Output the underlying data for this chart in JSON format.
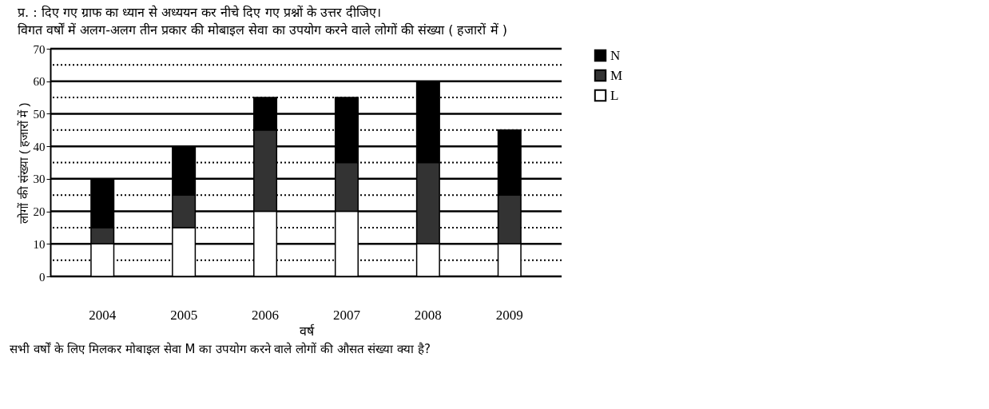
{
  "chart_data": {
    "type": "bar",
    "stacked": true,
    "title": "प्र.  : दिए गए ग्राफ का ध्यान से अध्ययन कर नीचे दिए गए प्रश्नों के उत्तर दीजिए।",
    "subtitle": "विगत वर्षों में अलग-अलग तीन प्रकार की मोबाइल सेवा का उपयोग करने वाले लोगों की संख्या ( हजारों में )",
    "xlabel": "वर्ष",
    "ylabel": "लोगों की संख्या ( हजारों में )",
    "categories": [
      "2004",
      "2005",
      "2006",
      "2007",
      "2008",
      "2009"
    ],
    "series": [
      {
        "name": "L",
        "color": "#ffffff",
        "values": [
          10,
          15,
          20,
          20,
          10,
          10
        ]
      },
      {
        "name": "M",
        "color": "#333333",
        "values": [
          5,
          10,
          25,
          15,
          25,
          15
        ]
      },
      {
        "name": "N",
        "color": "#000000",
        "values": [
          15,
          15,
          10,
          20,
          25,
          20
        ]
      }
    ],
    "ylim": [
      0,
      70
    ],
    "yticks": [
      0,
      10,
      20,
      30,
      40,
      50,
      60,
      70
    ],
    "grid": "y",
    "legend": "right",
    "annotations": [
      "सभी वर्षों के लिए मिलकर मोबाइल सेवा M का उपयोग करने वाले लोगों की औसत संख्या क्या है?"
    ]
  }
}
